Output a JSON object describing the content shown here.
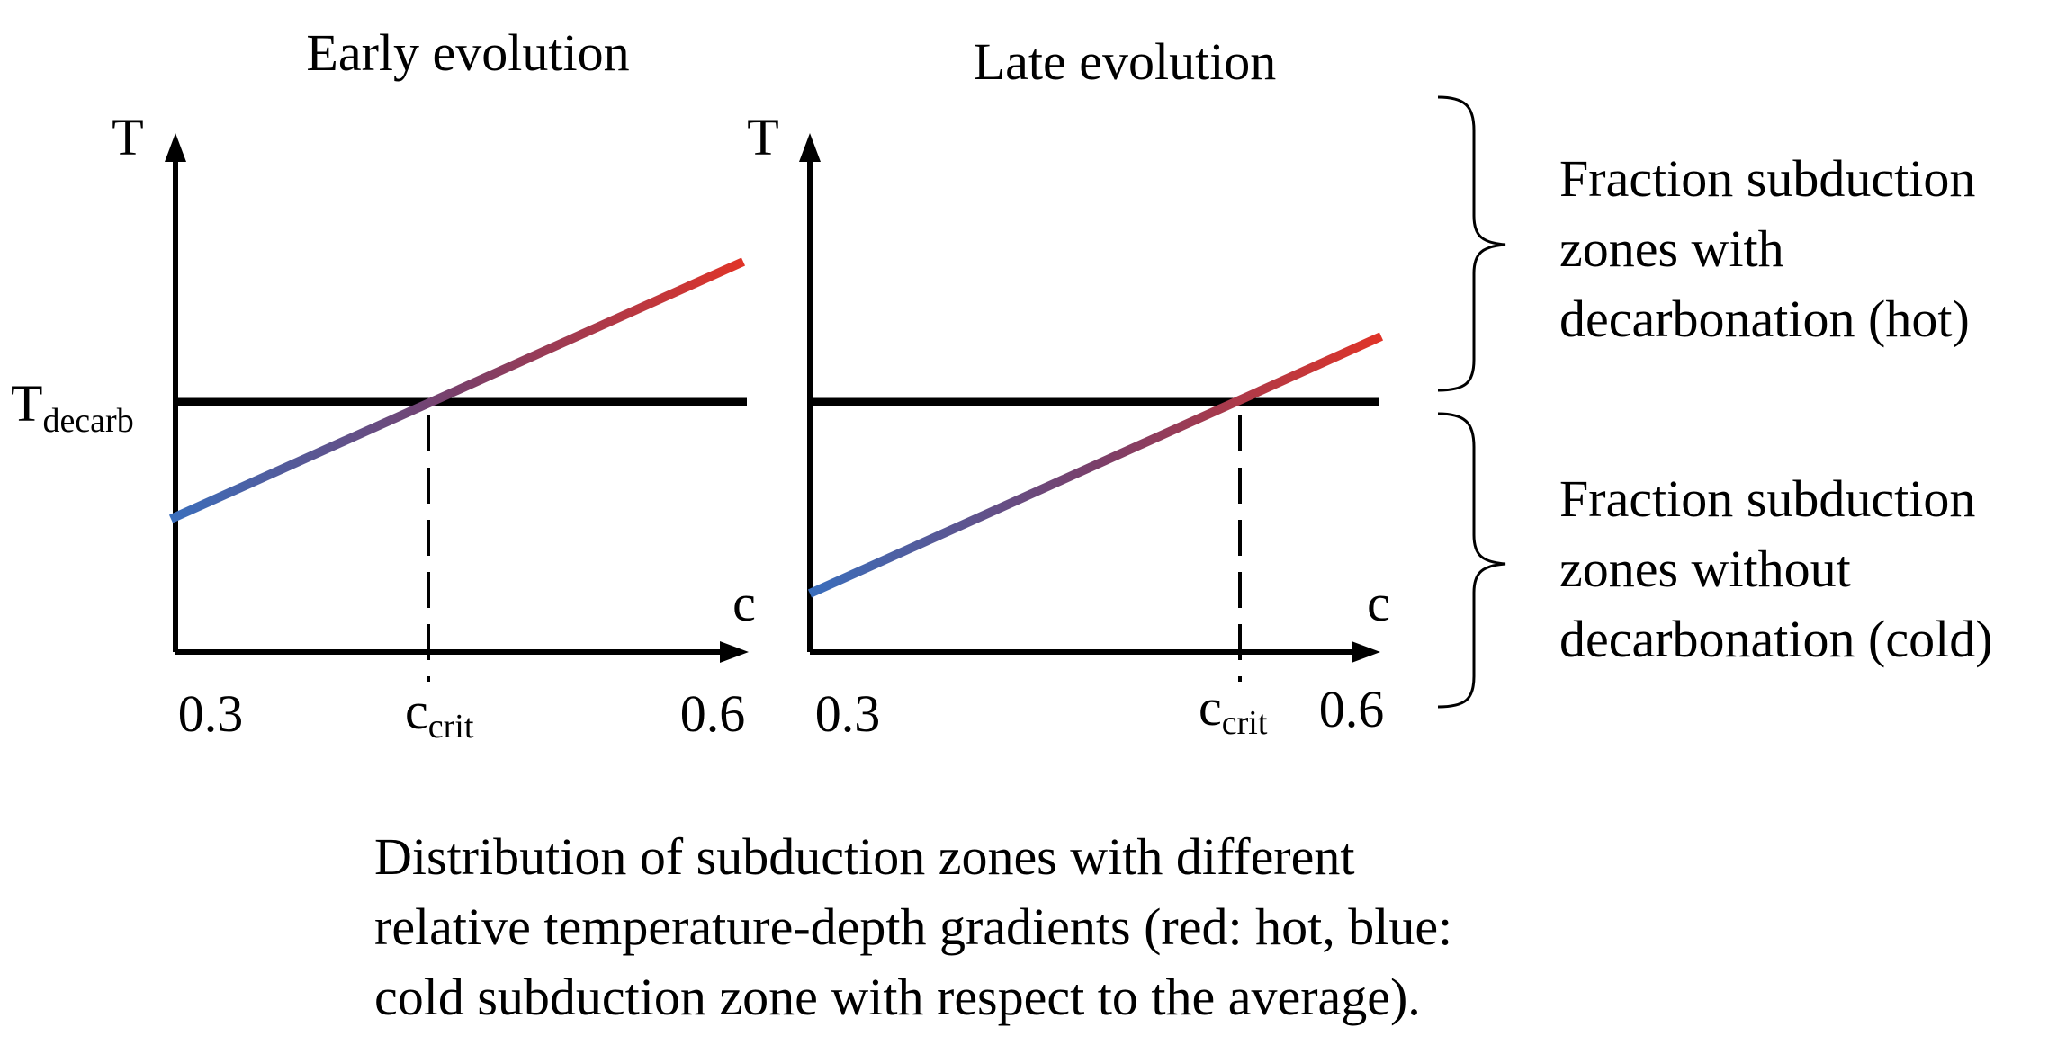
{
  "panels": [
    {
      "title": "Early evolution",
      "y_axis_label": "T",
      "x_axis_label": "c",
      "x_tick_left": "0.3",
      "x_tick_right": "0.6",
      "ccrit_main": "c",
      "ccrit_sub": "crit"
    },
    {
      "title": "Late evolution",
      "y_axis_label": "T",
      "x_axis_label": "c",
      "x_tick_left": "0.3",
      "x_tick_right": "0.6",
      "ccrit_main": "c",
      "ccrit_sub": "crit"
    }
  ],
  "threshold": {
    "main": "T",
    "sub": "decarb"
  },
  "brace_labels": {
    "hot": [
      "Fraction subduction",
      "zones with",
      "decarbonation (hot)"
    ],
    "cold": [
      "Fraction subduction",
      "zones without",
      "decarbonation (cold)"
    ]
  },
  "legend": {
    "lines": [
      "Distribution of subduction zones with different",
      "relative temperature-depth gradients (red: hot, blue:",
      "cold subduction zone with respect to the average)."
    ]
  },
  "colors": {
    "hot": "#e03428",
    "cold": "#3a6ebc",
    "axis": "#000000"
  }
}
